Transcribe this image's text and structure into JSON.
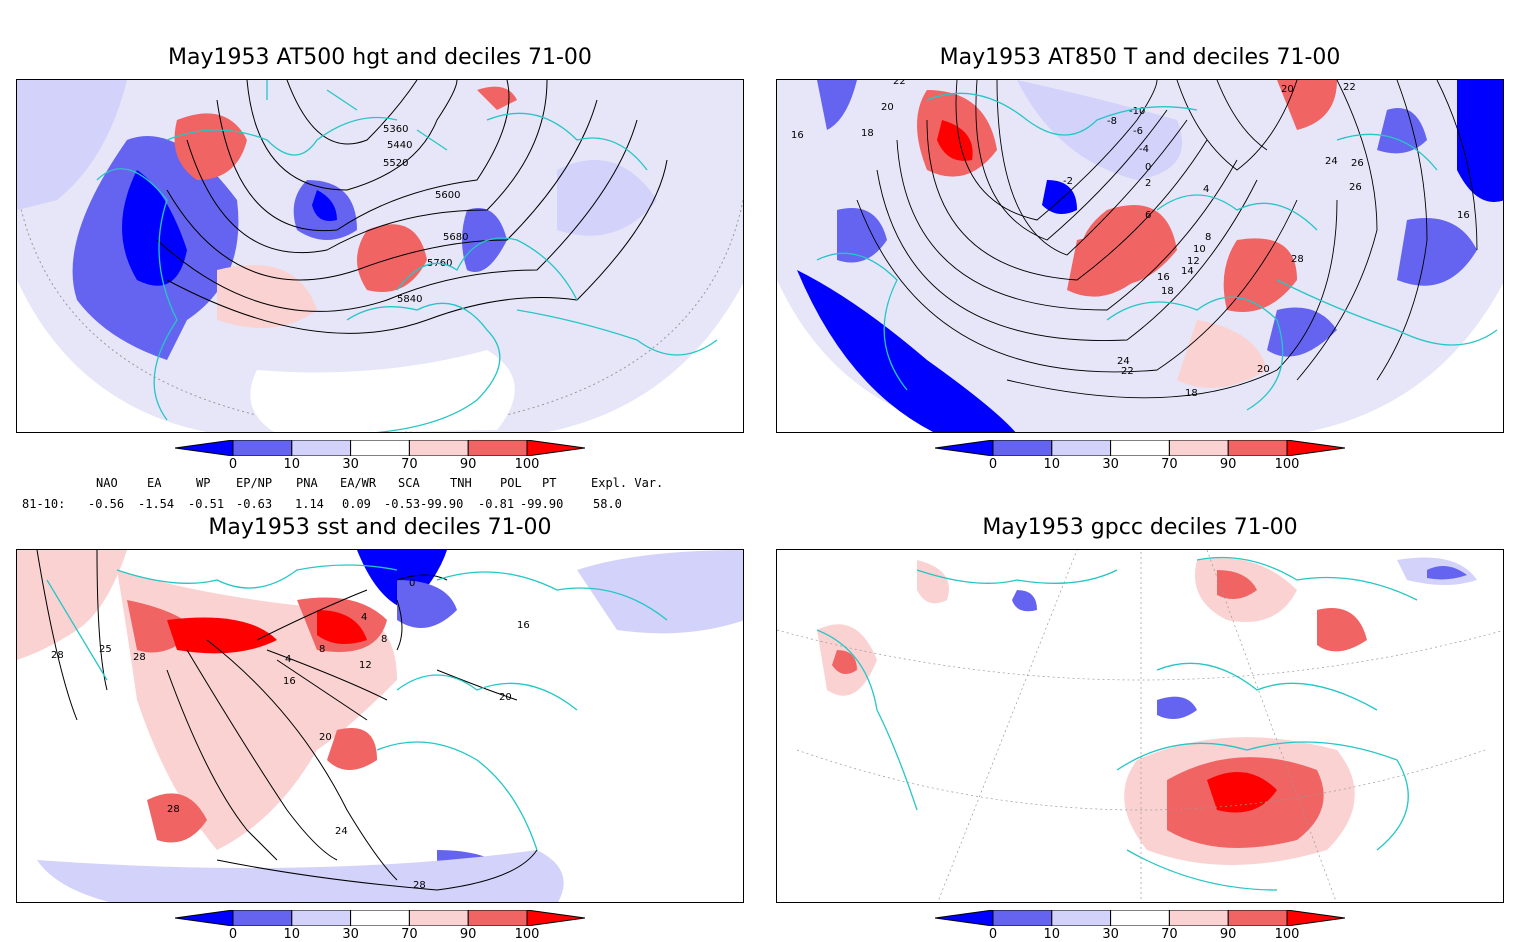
{
  "panels": [
    {
      "title": "May1953 AT500 hgt and deciles 71-00",
      "contour_labels": [
        "5360",
        "5440",
        "5520",
        "5600",
        "5680",
        "5760",
        "5840"
      ]
    },
    {
      "title": "May1953 AT850 T and deciles 71-00",
      "contour_labels": [
        "22",
        "20",
        "18",
        "16",
        "-10",
        "-8",
        "-6",
        "-4",
        "-2",
        "0",
        "2",
        "4",
        "6",
        "8",
        "10",
        "12",
        "14",
        "16",
        "18",
        "20",
        "22",
        "24",
        "26",
        "28",
        "18",
        "20",
        "24",
        "22",
        "16",
        "26"
      ]
    },
    {
      "title": "May1953 sst and deciles 71-00",
      "contour_labels": [
        "28",
        "25",
        "28",
        "0",
        "4",
        "8",
        "12",
        "16",
        "20",
        "24",
        "28",
        "28",
        "16",
        "20",
        "4",
        "8"
      ]
    },
    {
      "title": "May1953 gpcc deciles 71-00",
      "contour_labels": []
    }
  ],
  "colorbar": {
    "ticks": [
      "0",
      "10",
      "30",
      "70",
      "90",
      "100"
    ],
    "colors": [
      "#0000ff",
      "#6464f0",
      "#d2d2fa",
      "#ffffff",
      "#fad2d2",
      "#f06464",
      "#ff0000"
    ]
  },
  "indices": {
    "headers": [
      "NAO",
      "EA",
      "WP",
      "EP/NP",
      "PNA",
      "EA/WR",
      "SCA",
      "TNH",
      "POL",
      "PT",
      "Expl. Var."
    ],
    "row_label": "81-10:",
    "values": [
      "-0.56",
      "-1.54",
      "-0.51",
      "-0.63",
      "1.14",
      "0.09",
      "-0.53",
      "-99.90",
      "-0.81",
      "-99.90",
      "58.0"
    ]
  },
  "colors": {
    "coast": "#26c6c6",
    "contour": "#000000",
    "grid": "#999999"
  }
}
